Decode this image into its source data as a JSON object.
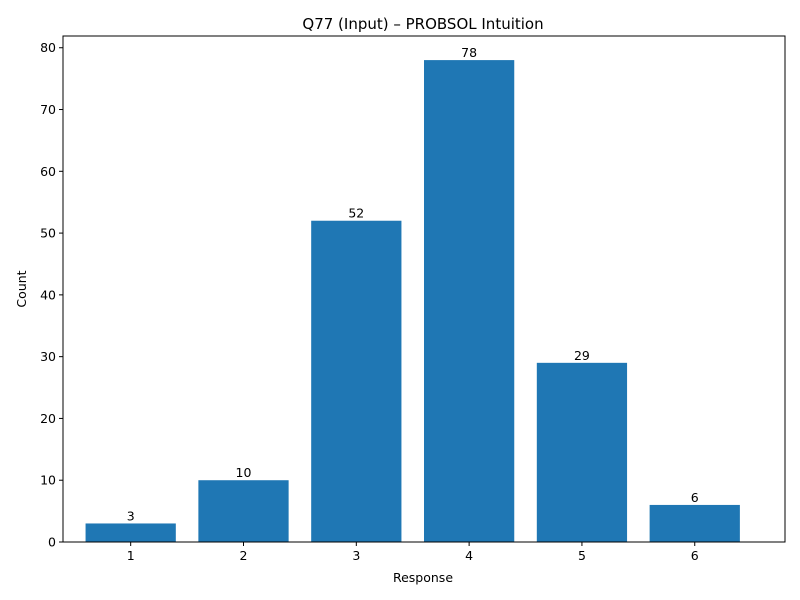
{
  "chart_data": {
    "type": "bar",
    "title": "Q77 (Input) – PROBSOL Intuition",
    "xlabel": "Response",
    "ylabel": "Count",
    "categories": [
      "1",
      "2",
      "3",
      "4",
      "5",
      "6"
    ],
    "values": [
      3,
      10,
      52,
      78,
      29,
      6
    ],
    "data_labels": [
      "3",
      "10",
      "52",
      "78",
      "29",
      "6"
    ],
    "ylim": [
      0,
      81.9
    ],
    "yticks": [
      0,
      10,
      20,
      30,
      40,
      50,
      60,
      70,
      80
    ],
    "ytick_labels": [
      "0",
      "10",
      "20",
      "30",
      "40",
      "50",
      "60",
      "70",
      "80"
    ],
    "grid": false,
    "bar_color": "#1f77b4"
  }
}
